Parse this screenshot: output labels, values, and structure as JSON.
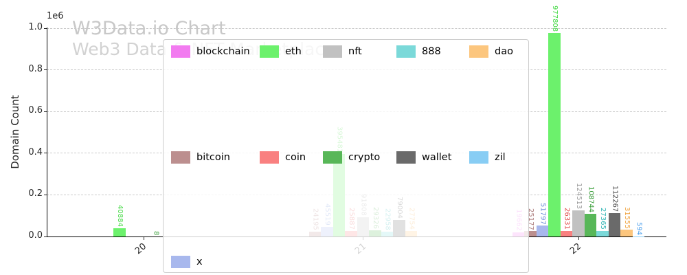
{
  "chart_data": {
    "type": "bar",
    "title": "W3Data.io Chart",
    "subtitle": "Web3 Data & NFT Marketplace",
    "xlabel": "",
    "ylabel": "Domain Count",
    "offset_text": "1e6",
    "ylim": [
      0,
      1000000
    ],
    "yticks": [
      "0.0",
      "0.2",
      "0.4",
      "0.6",
      "0.8",
      "1.0"
    ],
    "grid": "horizontal-dashed",
    "legend_position": "center-overlay-3rows-5cols",
    "categories": [
      "20",
      "21",
      "22"
    ],
    "series": [
      {
        "name": "blockchain",
        "color": "#f27bf0",
        "label_color": "#ee5fee",
        "values": [
          null,
          null,
          19662
        ]
      },
      {
        "name": "bitcoin",
        "color": "#bc8f8f",
        "label_color": "#ab7a7a",
        "values": [
          null,
          24195,
          25177
        ]
      },
      {
        "name": "x",
        "color": "#a8b8ed",
        "label_color": "#6c8cd8",
        "values": [
          null,
          45519,
          51797
        ]
      },
      {
        "name": "eth",
        "color": "#6cf16c",
        "label_color": "#44d944",
        "values": [
          40884,
          395481,
          977808
        ]
      },
      {
        "name": "coin",
        "color": "#f98080",
        "label_color": "#e24848",
        "values": [
          null,
          25887,
          26331
        ]
      },
      {
        "name": "nft",
        "color": "#c1c1c1",
        "label_color": "#9c9c9c",
        "values": [
          null,
          91808,
          124513
        ]
      },
      {
        "name": "crypto",
        "color": "#58b758",
        "label_color": "#3da03d",
        "values": [
          8,
          29326,
          108744
        ]
      },
      {
        "name": "888",
        "color": "#7bd9d9",
        "label_color": "#2fb5b5",
        "values": [
          null,
          22958,
          27365
        ]
      },
      {
        "name": "wallet",
        "color": "#6a6a6a",
        "label_color": "#404040",
        "values": [
          null,
          79004,
          112267
        ]
      },
      {
        "name": "dao",
        "color": "#fcc67e",
        "label_color": "#f0a440",
        "values": [
          null,
          27754,
          31555
        ]
      },
      {
        "name": "zil",
        "color": "#88cdf4",
        "label_color": "#4b9fec",
        "values": [
          null,
          null,
          594
        ]
      }
    ],
    "legend_rows": [
      [
        "blockchain",
        "eth",
        "nft",
        "888",
        "dao"
      ],
      [
        "bitcoin",
        "coin",
        "crypto",
        "wallet",
        "zil"
      ],
      [
        "x"
      ]
    ]
  }
}
